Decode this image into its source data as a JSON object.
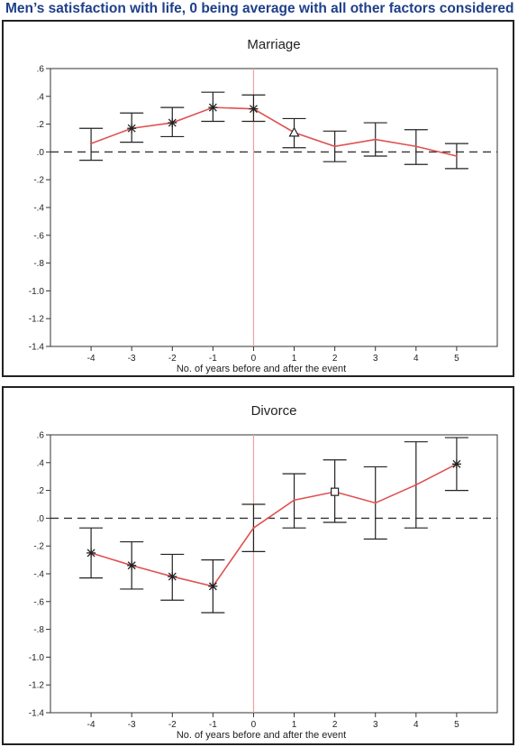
{
  "headline": "Men’s satisfaction with life, 0 being average with all other factors considered",
  "chart_data": [
    {
      "type": "line",
      "title": "Marriage",
      "xlabel": "No. of years before and after the event",
      "ylabel": "",
      "x": [
        -4,
        -3,
        -2,
        -1,
        0,
        1,
        2,
        3,
        4,
        5
      ],
      "ylim": [
        -1.4,
        0.6
      ],
      "yticks": [
        ".6",
        ".4",
        ".2",
        ".0",
        "-.2",
        "-.4",
        "-.6",
        "-.8",
        "-1.0",
        "-1.2",
        "-1.4"
      ],
      "xticks": [
        "-4",
        "-3",
        "-2",
        "-1",
        "0",
        "1",
        "2",
        "3",
        "4",
        "5"
      ],
      "series": [
        {
          "values": [
            0.06,
            0.17,
            0.21,
            0.32,
            0.31,
            0.14,
            0.04,
            0.09,
            0.04,
            -0.03
          ],
          "lower": [
            -0.06,
            0.07,
            0.11,
            0.22,
            0.22,
            0.03,
            -0.07,
            -0.03,
            -0.09,
            -0.12
          ],
          "upper": [
            0.17,
            0.28,
            0.32,
            0.43,
            0.41,
            0.24,
            0.15,
            0.21,
            0.16,
            0.06
          ],
          "markers": [
            "",
            "star",
            "star",
            "star",
            "star",
            "triangle",
            "",
            "",
            "",
            ""
          ]
        }
      ],
      "reference_line_y": 0,
      "event_line_x": 0,
      "line_color": "#e05050",
      "event_line_color": "#f0a0a0",
      "grid": false
    },
    {
      "type": "line",
      "title": "Divorce",
      "xlabel": "No. of years before and after the event",
      "ylabel": "",
      "x": [
        -4,
        -3,
        -2,
        -1,
        0,
        1,
        2,
        3,
        4,
        5
      ],
      "ylim": [
        -1.4,
        0.6
      ],
      "yticks": [
        ".6",
        ".4",
        ".2",
        ".0",
        "-.2",
        "-.4",
        "-.6",
        "-.8",
        "-1.0",
        "-1.2",
        "-1.4"
      ],
      "xticks": [
        "-4",
        "-3",
        "-2",
        "-1",
        "0",
        "1",
        "2",
        "3",
        "4",
        "5"
      ],
      "series": [
        {
          "values": [
            -0.25,
            -0.34,
            -0.42,
            -0.49,
            -0.07,
            0.13,
            0.19,
            0.11,
            0.24,
            0.39
          ],
          "lower": [
            -0.43,
            -0.51,
            -0.59,
            -0.68,
            -0.24,
            -0.07,
            -0.03,
            -0.15,
            -0.07,
            0.2
          ],
          "upper": [
            -0.07,
            -0.17,
            -0.26,
            -0.3,
            0.1,
            0.32,
            0.42,
            0.37,
            0.55,
            0.58
          ],
          "markers": [
            "star",
            "star",
            "star",
            "star",
            "",
            "",
            "square",
            "",
            "",
            "star"
          ]
        }
      ],
      "reference_line_y": 0,
      "event_line_x": 0,
      "line_color": "#e05050",
      "event_line_color": "#f0a0a0",
      "grid": false
    }
  ]
}
